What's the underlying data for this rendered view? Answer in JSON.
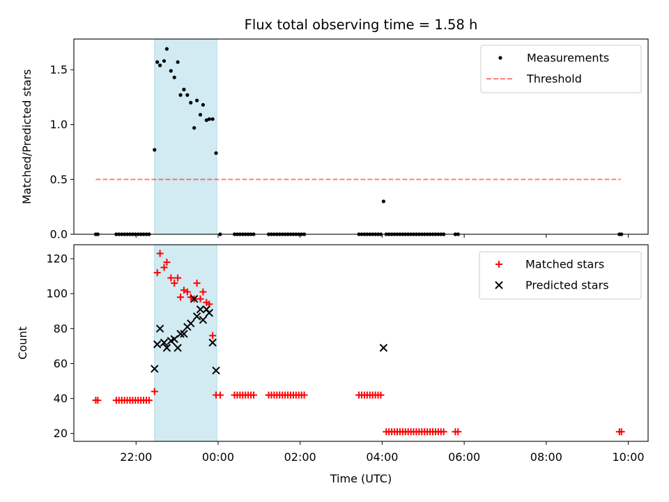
{
  "figure": {
    "title": "Flux total observing time = 1.58 h",
    "xlabel": "Time (UTC)",
    "x_ticks": [
      "22:00",
      "00:00",
      "02:00",
      "04:00",
      "06:00",
      "08:00",
      "10:00"
    ],
    "colors": {
      "shade": "#add8e6",
      "measurement": "#000000",
      "threshold": "#ff0000",
      "matched": "#ff0000",
      "predicted": "#000000"
    }
  },
  "chart_data": [
    {
      "type": "scatter",
      "ylabel": "Matched/Predicted stars",
      "xlim": [
        "20:29",
        "10:29"
      ],
      "ylim": [
        0,
        1.78
      ],
      "y_ticks": [
        "0.0",
        "0.5",
        "1.0",
        "1.5"
      ],
      "shaded_interval": [
        "22:27",
        "23:58"
      ],
      "legend": {
        "placement": "top-right",
        "entries": [
          "Measurements",
          "Threshold"
        ]
      },
      "threshold": {
        "name": "Threshold",
        "value": 0.5,
        "x_range": [
          "21:01",
          "09:49"
        ],
        "style": "dashed"
      },
      "series": [
        {
          "name": "Measurements",
          "marker": "dot",
          "points": [
            [
              "21:01",
              0
            ],
            [
              "21:04",
              0
            ],
            [
              "21:31",
              0
            ],
            [
              "21:35",
              0
            ],
            [
              "21:39",
              0
            ],
            [
              "21:43",
              0
            ],
            [
              "21:47",
              0
            ],
            [
              "21:51",
              0
            ],
            [
              "21:55",
              0
            ],
            [
              "21:59",
              0
            ],
            [
              "22:03",
              0
            ],
            [
              "22:07",
              0
            ],
            [
              "22:11",
              0
            ],
            [
              "22:15",
              0
            ],
            [
              "22:19",
              0
            ],
            [
              "22:27",
              0.77
            ],
            [
              "22:31",
              1.57
            ],
            [
              "22:35",
              1.54
            ],
            [
              "22:41",
              1.58
            ],
            [
              "22:45",
              1.69
            ],
            [
              "22:51",
              1.49
            ],
            [
              "22:56",
              1.43
            ],
            [
              "23:01",
              1.57
            ],
            [
              "23:05",
              1.27
            ],
            [
              "23:10",
              1.32
            ],
            [
              "23:15",
              1.27
            ],
            [
              "23:20",
              1.2
            ],
            [
              "23:25",
              0.97
            ],
            [
              "23:29",
              1.22
            ],
            [
              "23:34",
              1.09
            ],
            [
              "23:38",
              1.18
            ],
            [
              "23:43",
              1.04
            ],
            [
              "23:47",
              1.05
            ],
            [
              "23:52",
              1.05
            ],
            [
              "23:57",
              0.74
            ],
            [
              "00:03",
              0
            ],
            [
              "00:24",
              0
            ],
            [
              "00:28",
              0
            ],
            [
              "00:32",
              0
            ],
            [
              "00:36",
              0
            ],
            [
              "00:40",
              0
            ],
            [
              "00:44",
              0
            ],
            [
              "00:48",
              0
            ],
            [
              "00:52",
              0
            ],
            [
              "01:14",
              0
            ],
            [
              "01:18",
              0
            ],
            [
              "01:22",
              0
            ],
            [
              "01:26",
              0
            ],
            [
              "01:30",
              0
            ],
            [
              "01:34",
              0
            ],
            [
              "01:38",
              0
            ],
            [
              "01:42",
              0
            ],
            [
              "01:46",
              0
            ],
            [
              "01:50",
              0
            ],
            [
              "01:54",
              0
            ],
            [
              "01:58",
              0
            ],
            [
              "02:02",
              0
            ],
            [
              "02:06",
              0
            ],
            [
              "03:26",
              0
            ],
            [
              "03:30",
              0
            ],
            [
              "03:34",
              0
            ],
            [
              "03:38",
              0
            ],
            [
              "03:42",
              0
            ],
            [
              "03:46",
              0
            ],
            [
              "03:50",
              0
            ],
            [
              "03:54",
              0
            ],
            [
              "03:58",
              0
            ],
            [
              "04:02",
              0.3
            ],
            [
              "04:06",
              0
            ],
            [
              "04:10",
              0
            ],
            [
              "04:14",
              0
            ],
            [
              "04:18",
              0
            ],
            [
              "04:22",
              0
            ],
            [
              "04:26",
              0
            ],
            [
              "04:30",
              0
            ],
            [
              "04:34",
              0
            ],
            [
              "04:38",
              0
            ],
            [
              "04:42",
              0
            ],
            [
              "04:46",
              0
            ],
            [
              "04:50",
              0
            ],
            [
              "04:54",
              0
            ],
            [
              "04:58",
              0
            ],
            [
              "05:02",
              0
            ],
            [
              "05:06",
              0
            ],
            [
              "05:10",
              0
            ],
            [
              "05:14",
              0
            ],
            [
              "05:18",
              0
            ],
            [
              "05:22",
              0
            ],
            [
              "05:26",
              0
            ],
            [
              "05:30",
              0
            ],
            [
              "05:47",
              0
            ],
            [
              "05:51",
              0
            ],
            [
              "09:47",
              0
            ],
            [
              "09:50",
              0
            ]
          ]
        }
      ]
    },
    {
      "type": "scatter",
      "ylabel": "Count",
      "xlim": [
        "20:29",
        "10:29"
      ],
      "ylim": [
        15.5,
        128
      ],
      "y_ticks": [
        "20",
        "40",
        "60",
        "80",
        "100",
        "120"
      ],
      "shaded_interval": [
        "22:27",
        "23:58"
      ],
      "legend": {
        "placement": "top-right",
        "entries": [
          "Matched stars",
          "Predicted stars"
        ]
      },
      "series": [
        {
          "name": "Matched stars",
          "marker": "plus",
          "points": [
            [
              "21:01",
              39
            ],
            [
              "21:04",
              39
            ],
            [
              "21:31",
              39
            ],
            [
              "21:35",
              39
            ],
            [
              "21:39",
              39
            ],
            [
              "21:43",
              39
            ],
            [
              "21:47",
              39
            ],
            [
              "21:51",
              39
            ],
            [
              "21:55",
              39
            ],
            [
              "21:59",
              39
            ],
            [
              "22:03",
              39
            ],
            [
              "22:07",
              39
            ],
            [
              "22:11",
              39
            ],
            [
              "22:15",
              39
            ],
            [
              "22:19",
              39
            ],
            [
              "22:27",
              44
            ],
            [
              "22:31",
              112
            ],
            [
              "22:35",
              123
            ],
            [
              "22:41",
              115
            ],
            [
              "22:45",
              118
            ],
            [
              "22:51",
              109
            ],
            [
              "22:56",
              106
            ],
            [
              "23:01",
              109
            ],
            [
              "23:05",
              98
            ],
            [
              "23:10",
              102
            ],
            [
              "23:15",
              101
            ],
            [
              "23:20",
              98
            ],
            [
              "23:25",
              97
            ],
            [
              "23:29",
              106
            ],
            [
              "23:34",
              97
            ],
            [
              "23:38",
              101
            ],
            [
              "23:43",
              95
            ],
            [
              "23:47",
              94
            ],
            [
              "23:52",
              76
            ],
            [
              "23:57",
              42
            ],
            [
              "00:03",
              42
            ],
            [
              "00:24",
              42
            ],
            [
              "00:28",
              42
            ],
            [
              "00:32",
              42
            ],
            [
              "00:36",
              42
            ],
            [
              "00:40",
              42
            ],
            [
              "00:44",
              42
            ],
            [
              "00:48",
              42
            ],
            [
              "00:52",
              42
            ],
            [
              "01:14",
              42
            ],
            [
              "01:18",
              42
            ],
            [
              "01:22",
              42
            ],
            [
              "01:26",
              42
            ],
            [
              "01:30",
              42
            ],
            [
              "01:34",
              42
            ],
            [
              "01:38",
              42
            ],
            [
              "01:42",
              42
            ],
            [
              "01:46",
              42
            ],
            [
              "01:50",
              42
            ],
            [
              "01:54",
              42
            ],
            [
              "01:58",
              42
            ],
            [
              "02:02",
              42
            ],
            [
              "02:06",
              42
            ],
            [
              "03:26",
              42
            ],
            [
              "03:30",
              42
            ],
            [
              "03:34",
              42
            ],
            [
              "03:38",
              42
            ],
            [
              "03:42",
              42
            ],
            [
              "03:46",
              42
            ],
            [
              "03:50",
              42
            ],
            [
              "03:54",
              42
            ],
            [
              "03:58",
              42
            ],
            [
              "04:06",
              21
            ],
            [
              "04:10",
              21
            ],
            [
              "04:14",
              21
            ],
            [
              "04:18",
              21
            ],
            [
              "04:22",
              21
            ],
            [
              "04:26",
              21
            ],
            [
              "04:30",
              21
            ],
            [
              "04:34",
              21
            ],
            [
              "04:38",
              21
            ],
            [
              "04:42",
              21
            ],
            [
              "04:46",
              21
            ],
            [
              "04:50",
              21
            ],
            [
              "04:54",
              21
            ],
            [
              "04:58",
              21
            ],
            [
              "05:02",
              21
            ],
            [
              "05:06",
              21
            ],
            [
              "05:10",
              21
            ],
            [
              "05:14",
              21
            ],
            [
              "05:18",
              21
            ],
            [
              "05:22",
              21
            ],
            [
              "05:26",
              21
            ],
            [
              "05:30",
              21
            ],
            [
              "05:47",
              21
            ],
            [
              "05:51",
              21
            ],
            [
              "09:47",
              21
            ],
            [
              "09:50",
              21
            ]
          ]
        },
        {
          "name": "Predicted stars",
          "marker": "x",
          "points": [
            [
              "22:27",
              57
            ],
            [
              "22:31",
              71
            ],
            [
              "22:35",
              80
            ],
            [
              "22:41",
              72
            ],
            [
              "22:45",
              69
            ],
            [
              "22:51",
              73
            ],
            [
              "22:56",
              74
            ],
            [
              "23:01",
              69
            ],
            [
              "23:05",
              77
            ],
            [
              "23:10",
              77
            ],
            [
              "23:15",
              81
            ],
            [
              "23:20",
              83
            ],
            [
              "23:25",
              97
            ],
            [
              "23:29",
              87
            ],
            [
              "23:34",
              91
            ],
            [
              "23:38",
              85
            ],
            [
              "23:43",
              91
            ],
            [
              "23:47",
              89
            ],
            [
              "23:52",
              72
            ],
            [
              "23:57",
              56
            ],
            [
              "04:02",
              69
            ]
          ]
        }
      ]
    }
  ]
}
